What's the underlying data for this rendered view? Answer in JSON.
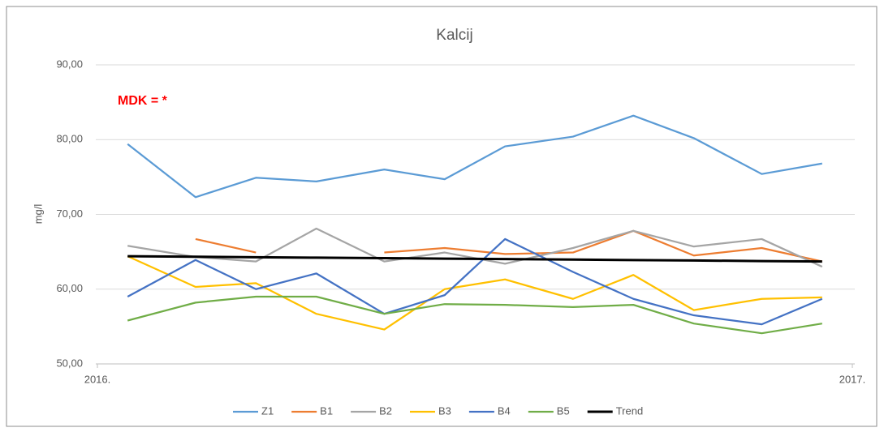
{
  "chart_data": {
    "type": "line",
    "title": "Kalcij",
    "y_label": "mg/l",
    "annotation": "MDK = *",
    "x": [
      2016.04,
      2016.13,
      2016.21,
      2016.29,
      2016.38,
      2016.46,
      2016.54,
      2016.63,
      2016.71,
      2016.79,
      2016.88,
      2016.96
    ],
    "xlim": [
      2016,
      2017
    ],
    "xticks": [
      {
        "value": 2016,
        "label": "2016."
      },
      {
        "value": 2017,
        "label": "2017."
      }
    ],
    "ylim": [
      50,
      90
    ],
    "yticks": [
      {
        "value": 50,
        "label": "50,00"
      },
      {
        "value": 60,
        "label": "60,00"
      },
      {
        "value": 70,
        "label": "70,00"
      },
      {
        "value": 80,
        "label": "80,00"
      },
      {
        "value": 90,
        "label": "90,00"
      }
    ],
    "grid": true,
    "legend": "bottom",
    "series": [
      {
        "name": "Z1",
        "color": "#5b9bd5",
        "values": [
          79.4,
          72.3,
          74.9,
          74.4,
          76.0,
          74.7,
          79.1,
          80.4,
          83.2,
          80.2,
          75.4,
          76.8
        ]
      },
      {
        "name": "B1",
        "color": "#ed7d31",
        "values": [
          null,
          66.7,
          64.9,
          null,
          64.9,
          65.5,
          64.7,
          64.9,
          67.8,
          64.5,
          65.5,
          63.7
        ]
      },
      {
        "name": "B2",
        "color": "#a5a5a5",
        "values": [
          65.8,
          64.3,
          63.7,
          68.1,
          63.7,
          64.9,
          63.4,
          65.5,
          67.8,
          65.7,
          66.7,
          63.0
        ]
      },
      {
        "name": "B3",
        "color": "#ffc000",
        "values": [
          64.4,
          60.3,
          60.8,
          56.7,
          54.6,
          60.0,
          61.3,
          58.7,
          61.9,
          57.2,
          58.7,
          58.9
        ]
      },
      {
        "name": "B4",
        "color": "#4472c4",
        "values": [
          59.0,
          63.9,
          60.0,
          62.1,
          56.7,
          59.2,
          66.7,
          62.3,
          58.7,
          56.5,
          55.3,
          58.7
        ]
      },
      {
        "name": "B5",
        "color": "#70ad47",
        "values": [
          55.8,
          58.2,
          59.0,
          59.0,
          56.7,
          58.0,
          57.9,
          57.6,
          57.9,
          55.4,
          54.1,
          55.4
        ]
      },
      {
        "name": "Trend",
        "color": "#000000",
        "values": [
          64.4,
          64.34,
          64.27,
          64.21,
          64.15,
          64.08,
          64.02,
          63.95,
          63.89,
          63.83,
          63.76,
          63.7
        ]
      }
    ]
  }
}
